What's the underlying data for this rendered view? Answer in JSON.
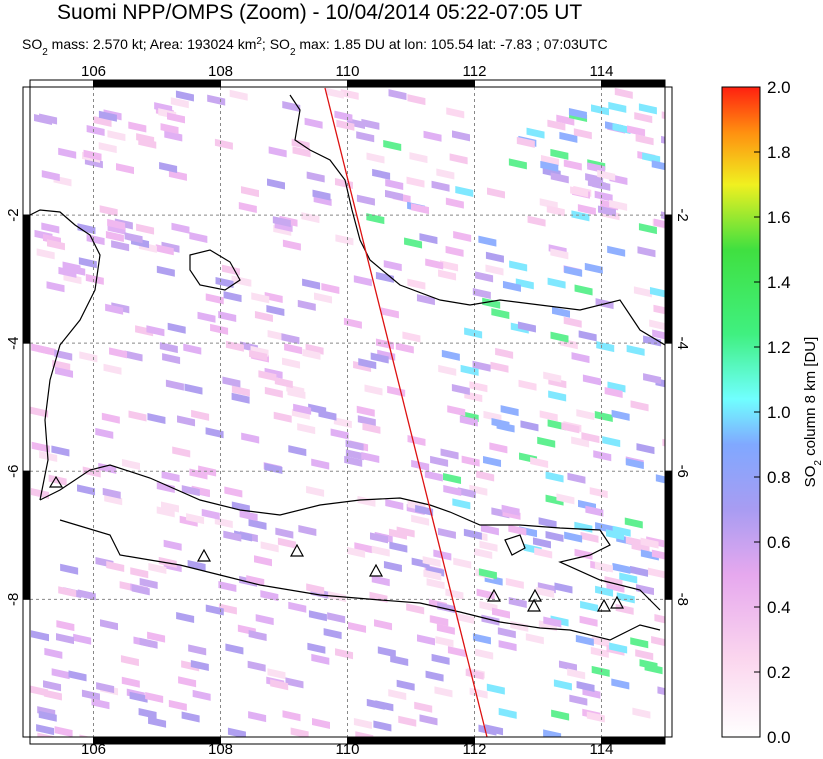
{
  "header": {
    "title": "Suomi NPP/OMPS (Zoom) - 10/04/2014 05:22-07:05 UT",
    "subtitle": [
      "SO",
      "2",
      " mass: 2.570 kt; Area: 193024 km",
      "2",
      "; SO",
      "2",
      " max: 1.85 DU at lon: 105.54 lat: -7.83 ; 07:03UTC"
    ]
  },
  "map": {
    "lonlim": [
      105,
      115
    ],
    "latlim": [
      -10.15,
      0
    ],
    "lonticks": [
      106,
      108,
      110,
      112,
      114
    ],
    "latticks": [
      -2,
      -4,
      -6,
      -8
    ]
  },
  "colorbar": {
    "label": [
      "SO",
      "2",
      " column 8 km [DU]"
    ],
    "lim": [
      0,
      2
    ],
    "ticks": [
      {
        "value": 0,
        "label": "0.0"
      },
      {
        "value": 0.2,
        "label": "0.2"
      },
      {
        "value": 0.4,
        "label": "0.4"
      },
      {
        "value": 0.6,
        "label": "0.6"
      },
      {
        "value": 0.8,
        "label": "0.8"
      },
      {
        "value": 1,
        "label": "1.0"
      },
      {
        "value": 1.2,
        "label": "1.2"
      },
      {
        "value": 1.4,
        "label": "1.4"
      },
      {
        "value": 1.6,
        "label": "1.6"
      },
      {
        "value": 1.8,
        "label": "1.8"
      },
      {
        "value": 2,
        "label": "2.0"
      }
    ]
  }
}
